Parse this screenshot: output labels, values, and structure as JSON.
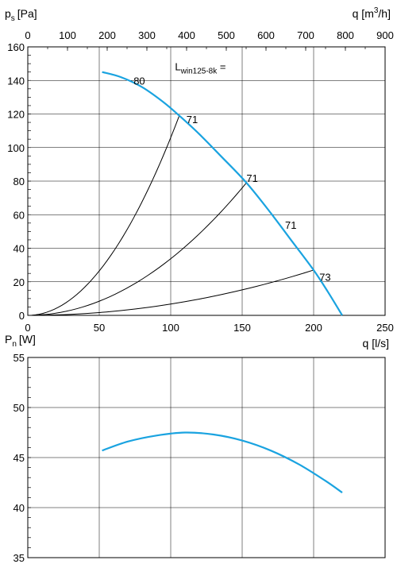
{
  "chart_data": [
    {
      "type": "line",
      "title": "",
      "ylabel": {
        "sym": "p",
        "sub": "s",
        "unit": "[Pa]"
      },
      "xlabel": "q [l/s]",
      "x2label": {
        "pre": "q [m",
        "sup": "3",
        "post": "/h]"
      },
      "xlim": [
        0,
        250
      ],
      "ylim": [
        0,
        160
      ],
      "x2lim": [
        0,
        900
      ],
      "x_ticks": [
        "0",
        "50",
        "100",
        "150",
        "200",
        "250"
      ],
      "y_ticks": [
        "0",
        "20",
        "40",
        "60",
        "80",
        "100",
        "120",
        "140",
        "160"
      ],
      "x2_ticks": [
        "0",
        "100",
        "200",
        "300",
        "400",
        "500",
        "600",
        "700",
        "800",
        "900"
      ],
      "grid": true,
      "annotation": {
        "sym": "L",
        "sub": "win125-8k",
        "post": " =",
        "x": 103,
        "y": 146
      },
      "fan_curve": {
        "color": "#1aa3e0",
        "x": [
          52,
          65,
          80,
          95,
          106,
          120,
          135,
          153,
          170,
          185,
          200,
          210,
          220
        ],
        "y": [
          145,
          142,
          136,
          127,
          119,
          108,
          95,
          79,
          61,
          44,
          27,
          14,
          0
        ]
      },
      "system_curves": [
        {
          "x_end": 106,
          "y_end": 119
        },
        {
          "x_end": 153,
          "y_end": 79
        },
        {
          "x_end": 200,
          "y_end": 27
        }
      ],
      "sound_labels": [
        {
          "text": "80",
          "x": 74,
          "y": 140
        },
        {
          "text": "71",
          "x": 111,
          "y": 117
        },
        {
          "text": "71",
          "x": 153,
          "y": 82
        },
        {
          "text": "71",
          "x": 180,
          "y": 54
        },
        {
          "text": "73",
          "x": 204,
          "y": 23
        }
      ]
    },
    {
      "type": "line",
      "title": "",
      "ylabel": {
        "sym": "P",
        "sub": "n",
        "unit": "[W]"
      },
      "xlim": [
        0,
        250
      ],
      "ylim": [
        35,
        55
      ],
      "y_ticks": [
        "35",
        "40",
        "45",
        "50",
        "55"
      ],
      "grid": true,
      "power_curve": {
        "color": "#1aa3e0",
        "x": [
          52,
          70,
          90,
          110,
          130,
          150,
          170,
          190,
          208,
          220
        ],
        "y": [
          45.7,
          46.6,
          47.2,
          47.5,
          47.3,
          46.7,
          45.7,
          44.3,
          42.7,
          41.5
        ]
      }
    }
  ]
}
